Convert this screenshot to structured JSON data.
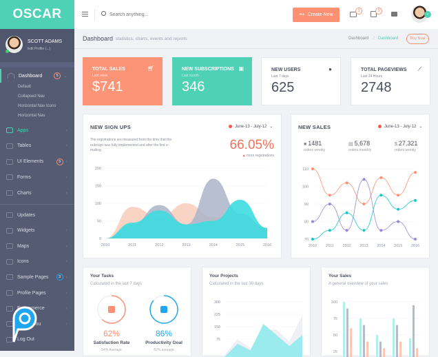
{
  "brand": "OSCAR",
  "user": {
    "name": "SCOTT ADAMS",
    "edit": "Edit Profile (...)"
  },
  "sidebar": {
    "dashboard": {
      "label": "Dashboard",
      "badge": "5",
      "sub": [
        "Default",
        "Collapsed Nav",
        "Horizontal Nav Icons",
        "Horizontal Nav"
      ]
    },
    "group1": [
      {
        "label": "Apps",
        "active": true
      },
      {
        "label": "Tables"
      },
      {
        "label": "UI Elements",
        "badge": "9",
        "badge_color": "#fc9073"
      },
      {
        "label": "Forms"
      },
      {
        "label": "Charts"
      }
    ],
    "group2": [
      {
        "label": "Updates"
      },
      {
        "label": "Widgets"
      },
      {
        "label": "Maps"
      },
      {
        "label": "Icons"
      },
      {
        "label": "Sample Pages",
        "badge": "3",
        "badge_color": "#1ea7f0"
      },
      {
        "label": "Profile Pages"
      },
      {
        "label": "E-commerce"
      },
      {
        "label": "Multi Menu"
      },
      {
        "label": "Log Out"
      }
    ]
  },
  "header": {
    "search_placeholder": "Search anything...",
    "create_label": "Create New",
    "mail_count": "3",
    "calendar_count": "9"
  },
  "page": {
    "title": "Dashboard",
    "subtitle": "statistics, charts, events and reports",
    "breadcrumb": [
      "Dashboard",
      "Dashboard"
    ],
    "buy": "Buy Now"
  },
  "stats": [
    {
      "title": "TOTAL SALES",
      "sub": "Last week",
      "value": "$741"
    },
    {
      "title": "NEW SUBSCRIPTIONS",
      "sub": "Last month",
      "value": "346"
    },
    {
      "title": "NEW USERS",
      "sub": "Last 7 days",
      "value": "625"
    },
    {
      "title": "TOTAL PAGEVIEWS",
      "sub": "Last 24 Hours",
      "value": "2748"
    }
  ],
  "signups": {
    "title": "NEW SIGN UPS",
    "range": "June-13 - July-12",
    "desc": "The registrations are measured from the time that the redesign was fully implemented and after the first e-mailing.",
    "pct": "66.05%",
    "pct_label": "more registrations"
  },
  "sales": {
    "title": "NEW SALES",
    "range": "June-13 - July-12",
    "kpis": [
      {
        "v": "1481",
        "l": "orders weekly"
      },
      {
        "v": "5,678",
        "l": "orders monthly"
      },
      {
        "v": "27,321",
        "l": "orders weekly"
      }
    ]
  },
  "tasks": {
    "title": "Your Tasks",
    "sub": "Calculated in the last 7 days",
    "items": [
      {
        "pct": "62%",
        "label": "Satisfaction Rate",
        "avg": "54% Average",
        "value": 62,
        "color": "#fc9073"
      },
      {
        "pct": "86%",
        "label": "Productivity Goal",
        "avg": "82% average",
        "value": 86,
        "color": "#1ea7f0"
      }
    ]
  },
  "projects": {
    "title": "Your Projects",
    "sub": "Calculated in the last 30 days"
  },
  "yoursales": {
    "title": "Your Sales",
    "sub": "A general overview of your sales"
  },
  "chart_data": [
    {
      "type": "area",
      "title": "NEW SIGN UPS",
      "x": [
        "2010",
        "2011",
        "2012",
        "2013",
        "2014",
        "2015",
        "2016"
      ],
      "ylim": [
        0,
        200
      ],
      "yticks": [
        0,
        50,
        100,
        150,
        200
      ],
      "series": [
        {
          "name": "s1",
          "color": "#f7c9b7",
          "values": [
            0,
            90,
            60,
            100,
            60,
            70,
            30
          ]
        },
        {
          "name": "s2",
          "color": "#aab4c8",
          "values": [
            0,
            40,
            95,
            40,
            170,
            70,
            30
          ]
        },
        {
          "name": "s3",
          "color": "#3ddbe0",
          "values": [
            0,
            45,
            80,
            40,
            50,
            110,
            30
          ]
        }
      ]
    },
    {
      "type": "line",
      "title": "NEW SALES",
      "x": [
        "2010",
        "2011",
        "2012",
        "2013",
        "2014",
        "2015",
        "2016"
      ],
      "ylim": [
        70,
        110
      ],
      "yticks": [
        70,
        80,
        90,
        100,
        110
      ],
      "series": [
        {
          "name": "s1",
          "color": "#fc9073",
          "values": [
            110,
            95,
            102,
            90,
            105,
            95,
            108
          ]
        },
        {
          "name": "s2",
          "color": "#9a86d6",
          "values": [
            80,
            90,
            75,
            104,
            75,
            80,
            70
          ]
        },
        {
          "name": "s3",
          "color": "#17c7cc",
          "values": [
            70,
            75,
            85,
            75,
            95,
            87,
            92
          ]
        }
      ]
    },
    {
      "type": "area",
      "title": "Your Projects",
      "ylim": [
        0,
        300
      ],
      "yticks": [
        75,
        150,
        225,
        300
      ],
      "series": [
        {
          "name": "s1",
          "color": "#eef0f5",
          "values": [
            60,
            130,
            90,
            170,
            175,
            120,
            240
          ]
        },
        {
          "name": "s2",
          "color": "#9beaee",
          "values": [
            50,
            110,
            80,
            200,
            150,
            100,
            150
          ]
        }
      ]
    },
    {
      "type": "bar",
      "title": "Your Sales",
      "ylim": [
        0,
        100
      ],
      "yticks": [
        25,
        50,
        75,
        100
      ],
      "series": [
        {
          "name": "s1",
          "color": "#b2eef0",
          "values": [
            100,
            75,
            50,
            75,
            45
          ]
        },
        {
          "name": "s2",
          "color": "#b3bbd0",
          "values": [
            90,
            65,
            40,
            65,
            95
          ]
        },
        {
          "name": "s3",
          "color": "#fcc7b7",
          "values": [
            60,
            40,
            30,
            40,
            30
          ]
        }
      ]
    }
  ]
}
